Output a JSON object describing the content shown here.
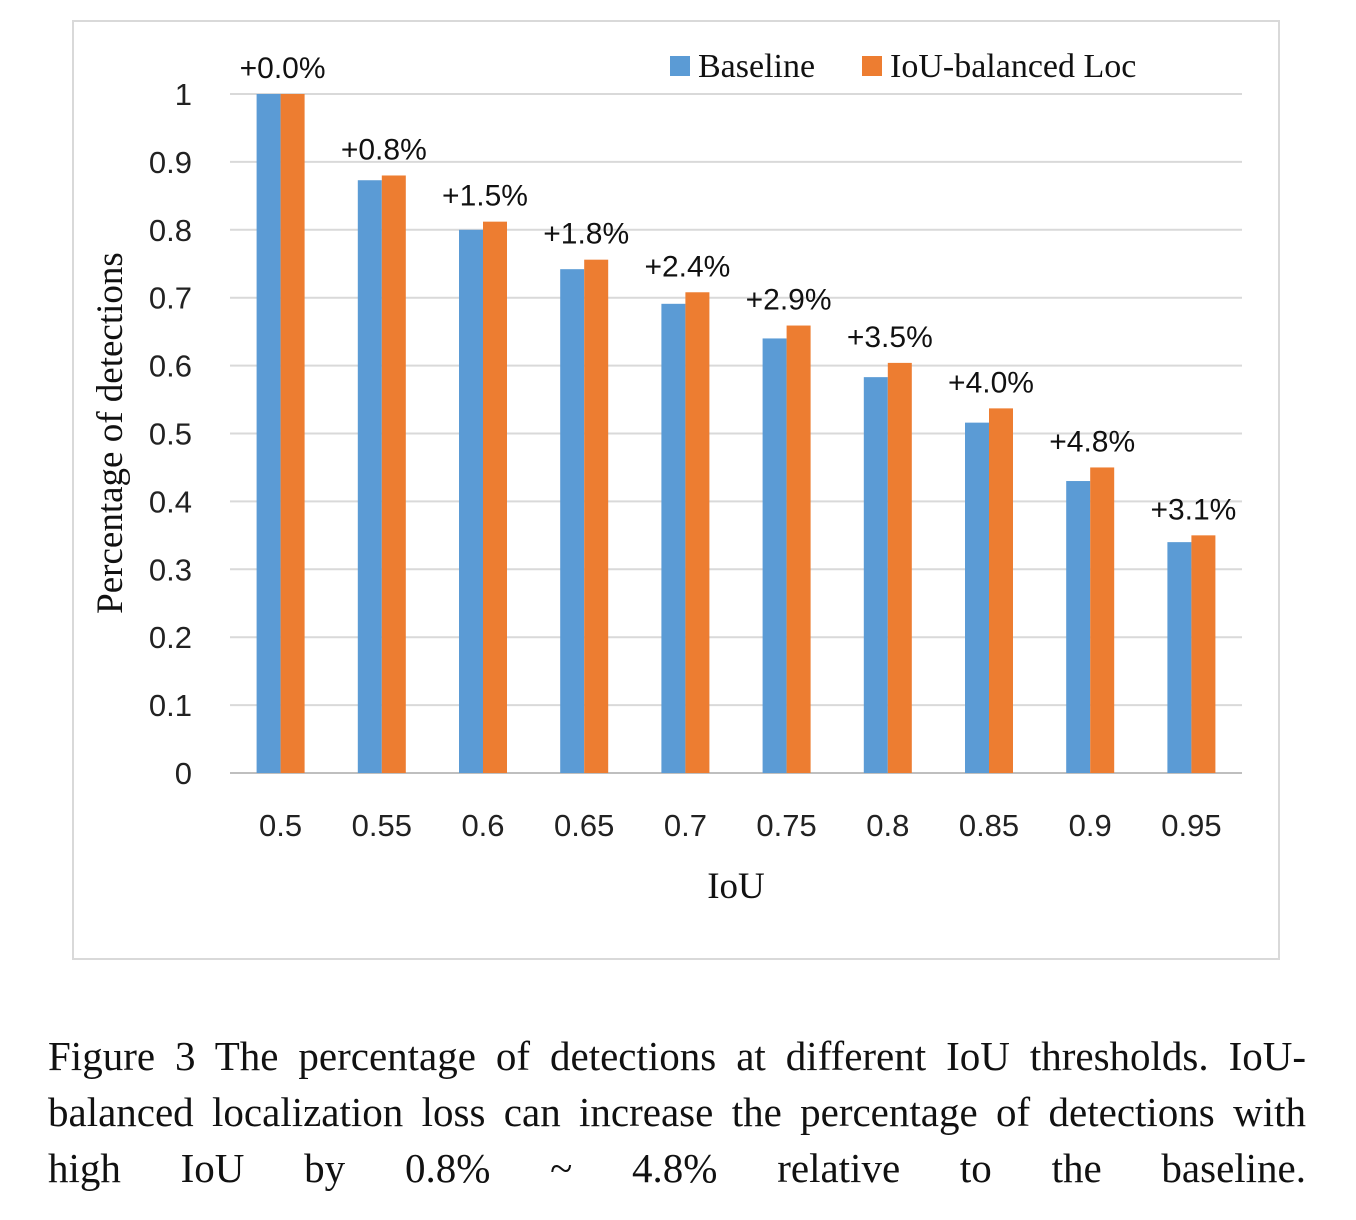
{
  "chart_data": {
    "type": "bar",
    "title": "",
    "xlabel": "IoU",
    "ylabel": "Percentage of detections",
    "categories": [
      "0.5",
      "0.55",
      "0.6",
      "0.65",
      "0.7",
      "0.75",
      "0.8",
      "0.85",
      "0.9",
      "0.95"
    ],
    "series": [
      {
        "name": "Baseline",
        "color": "#5b9bd5",
        "values": [
          1.0,
          0.873,
          0.8,
          0.742,
          0.691,
          0.64,
          0.583,
          0.516,
          0.43,
          0.34
        ]
      },
      {
        "name": "IoU-balanced Loc",
        "color": "#ed7d31",
        "values": [
          1.0,
          0.88,
          0.812,
          0.756,
          0.708,
          0.659,
          0.604,
          0.537,
          0.45,
          0.35
        ]
      }
    ],
    "annotations": [
      "+0.0%",
      "+0.8%",
      "+1.5%",
      "+1.8%",
      "+2.4%",
      "+2.9%",
      "+3.5%",
      "+4.0%",
      "+4.8%",
      "+3.1%"
    ],
    "yticks": [
      "0",
      "0.1",
      "0.2",
      "0.3",
      "0.4",
      "0.5",
      "0.6",
      "0.7",
      "0.8",
      "0.9",
      "1"
    ],
    "ylim": [
      0,
      1
    ],
    "grid": true,
    "legend": "top-right"
  },
  "caption": "Figure 3 The percentage of detections at different IoU thresholds. IoU-balanced localization loss can increase the percentage of detections with high IoU by 0.8% ~ 4.8% relative to the baseline."
}
